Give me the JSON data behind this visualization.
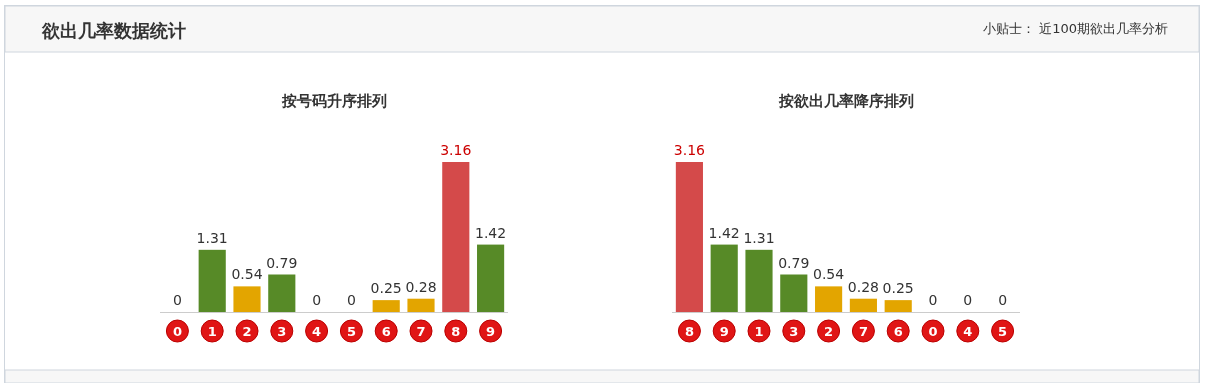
{
  "chart_data": [
    {
      "type": "other",
      "title": "欲出几率数据统计",
      "annotations": [
        "小贴士： 近100期欲出几率分析"
      ]
    },
    {
      "type": "bar",
      "title": "按号码升序排列",
      "categories": [
        "0",
        "1",
        "2",
        "3",
        "4",
        "5",
        "6",
        "7",
        "8",
        "9"
      ],
      "values": [
        0,
        1.31,
        0.54,
        0.79,
        0,
        0,
        0.25,
        0.28,
        3.16,
        1.42
      ],
      "colors": [
        "#578a27",
        "#578a27",
        "#e3a500",
        "#578a27",
        "#578a27",
        "#578a27",
        "#e3a500",
        "#e3a500",
        "#d44a4a",
        "#578a27"
      ],
      "data_labels": true
    },
    {
      "type": "bar",
      "title": "按欲出几率降序排列",
      "categories": [
        "8",
        "9",
        "1",
        "3",
        "2",
        "7",
        "6",
        "0",
        "4",
        "5"
      ],
      "values": [
        3.16,
        1.42,
        1.31,
        0.79,
        0.54,
        0.28,
        0.25,
        0,
        0,
        0
      ],
      "colors": [
        "#d44a4a",
        "#578a27",
        "#578a27",
        "#578a27",
        "#e3a500",
        "#e3a500",
        "#e3a500",
        "#578a27",
        "#578a27",
        "#578a27"
      ],
      "data_labels": true
    }
  ]
}
